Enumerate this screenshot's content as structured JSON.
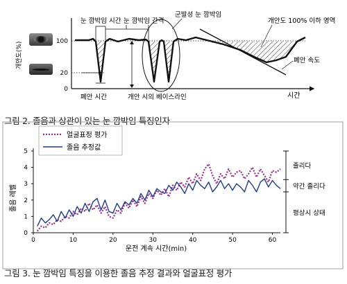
{
  "figure2": {
    "caption": "그림 2. 졸음과 상관이 있는 눈 깜박임 특징인자",
    "ylabel": "개안도(%)",
    "yticks": [
      "100",
      "20",
      "0"
    ],
    "xlabel": "시간",
    "labels": {
      "blink_time": "눈 깜박임 시간",
      "blink_interval": "눈 깜박임 간격",
      "cluster_blink": "군발성 눈 깜박임",
      "below_100": "개안도 100% 이하 영역",
      "close_speed": "폐안 속도",
      "close_time": "폐안 시간",
      "baseline": "개안 시의 베이스라인"
    },
    "icons": [
      "eye-open-icon",
      "eye-closed-icon"
    ],
    "colors": {
      "curve": "#111111",
      "hatch": "#333333"
    }
  },
  "figure3": {
    "caption": "그림 3. 눈 깜박임 특징을 이용한 졸음 추정 결과와 얼굴표정 평가",
    "chart_data": {
      "type": "line",
      "xlabel": "운전 계속 시간(min)",
      "ylabel": "졸음 레벨",
      "xlim": [
        0,
        62
      ],
      "ylim": [
        0,
        5
      ],
      "xticks": [
        0,
        10,
        20,
        30,
        40,
        50,
        60
      ],
      "yticks": [
        0,
        1,
        2,
        3,
        4,
        5
      ],
      "legend_position": "top-left",
      "grid": false,
      "series": [
        {
          "name": "얼굴표정 평가",
          "color": "#9b2d8e",
          "style": "dotted",
          "x": [
            1,
            2,
            3,
            4,
            5,
            6,
            7,
            8,
            9,
            10,
            11,
            12,
            13,
            14,
            15,
            16,
            17,
            18,
            19,
            20,
            21,
            22,
            23,
            24,
            25,
            26,
            27,
            28,
            29,
            30,
            31,
            32,
            33,
            34,
            35,
            36,
            37,
            38,
            39,
            40,
            41,
            42,
            43,
            44,
            45,
            46,
            47,
            48,
            49,
            50,
            51,
            52,
            53,
            54,
            55,
            56,
            57,
            58,
            59,
            60,
            61,
            62
          ],
          "values": [
            0.1,
            0.4,
            0.3,
            0.6,
            0.5,
            0.8,
            0.7,
            1.0,
            0.9,
            1.3,
            1.1,
            1.5,
            1.3,
            1.8,
            1.4,
            1.7,
            1.2,
            1.6,
            1.0,
            0.9,
            1.4,
            1.2,
            1.8,
            1.5,
            2.0,
            1.6,
            2.2,
            1.8,
            2.4,
            2.1,
            2.6,
            2.3,
            2.7,
            2.2,
            2.9,
            2.6,
            3.1,
            2.8,
            3.4,
            3.0,
            3.6,
            3.2,
            3.9,
            4.2,
            3.5,
            3.0,
            3.6,
            3.3,
            3.9,
            3.4,
            3.7,
            3.8,
            3.3,
            3.6,
            4.0,
            3.4,
            3.9,
            3.5,
            3.1,
            3.8,
            3.7,
            3.9
          ]
        },
        {
          "name": "졸음 추정값",
          "color": "#1f3a8a",
          "style": "solid",
          "x": [
            1,
            2,
            3,
            4,
            5,
            6,
            7,
            8,
            9,
            10,
            11,
            12,
            13,
            14,
            15,
            16,
            17,
            18,
            19,
            20,
            21,
            22,
            23,
            24,
            25,
            26,
            27,
            28,
            29,
            30,
            31,
            32,
            33,
            34,
            35,
            36,
            37,
            38,
            39,
            40,
            41,
            42,
            43,
            44,
            45,
            46,
            47,
            48,
            49,
            50,
            51,
            52,
            53,
            54,
            55,
            56,
            57,
            58,
            59,
            60,
            61,
            62
          ],
          "values": [
            0.4,
            0.9,
            0.6,
            0.8,
            1.1,
            0.7,
            1.3,
            0.9,
            1.4,
            1.0,
            1.6,
            1.2,
            1.8,
            1.3,
            1.9,
            2.1,
            1.4,
            2.0,
            1.3,
            1.2,
            1.8,
            1.4,
            1.9,
            1.7,
            2.1,
            1.8,
            2.4,
            2.0,
            2.6,
            2.2,
            2.7,
            2.5,
            2.4,
            2.9,
            2.6,
            3.1,
            2.8,
            2.4,
            3.0,
            2.6,
            3.2,
            2.9,
            2.7,
            3.1,
            2.5,
            2.8,
            3.2,
            2.7,
            3.0,
            2.6,
            3.0,
            2.8,
            2.5,
            3.2,
            2.9,
            2.5,
            3.1,
            3.3,
            2.8,
            3.2,
            2.9,
            2.7
          ]
        }
      ],
      "levels": [
        {
          "label": "졸리다",
          "range": [
            3.25,
            5
          ]
        },
        {
          "label": "약간 졸리다",
          "range": [
            2.5,
            3.25
          ]
        },
        {
          "label": "평상시 상태",
          "range": [
            0,
            2.5
          ]
        }
      ]
    }
  }
}
